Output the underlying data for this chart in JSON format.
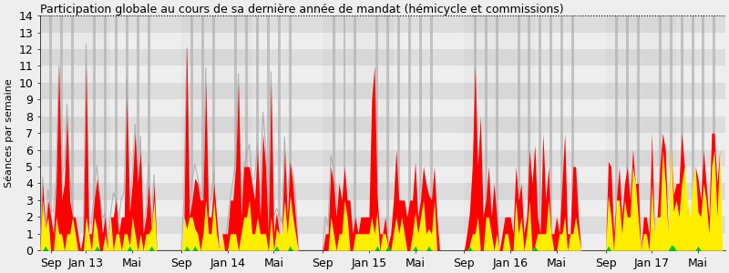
{
  "title": "Participation globale au cours de sa dernière année de mandat (hémicycle et commissions)",
  "ylabel": "Séances par semaine",
  "xlabel_ticks": [
    "Sep",
    "Jan 13",
    "Mai",
    "Sep",
    "Jan 14",
    "Mai",
    "Sep",
    "Jan 15",
    "Mai",
    "Sep",
    "Jan 16",
    "Mai",
    "Sep",
    "Jan 17",
    "Mai"
  ],
  "tick_positions": [
    4,
    17,
    34,
    52,
    69,
    86,
    104,
    121,
    138,
    156,
    173,
    190,
    208,
    225,
    242
  ],
  "ylim": [
    0,
    14
  ],
  "yticks": [
    0,
    1,
    2,
    3,
    4,
    5,
    6,
    7,
    8,
    9,
    10,
    11,
    12,
    13,
    14
  ],
  "n_weeks": 252,
  "bg_color": "#eeeeee",
  "color_red": "#ff0000",
  "color_yellow": "#ffee00",
  "color_green": "#00cc00",
  "color_gray_line": "#aaaaaa",
  "hband_light": "#f4f4f4",
  "hband_dark": "#dcdcdc",
  "vband_dark": "#b0b0b0",
  "vband_light": "#d8d8d8",
  "title_fontsize": 9,
  "ylabel_fontsize": 8,
  "tick_fontsize": 9
}
